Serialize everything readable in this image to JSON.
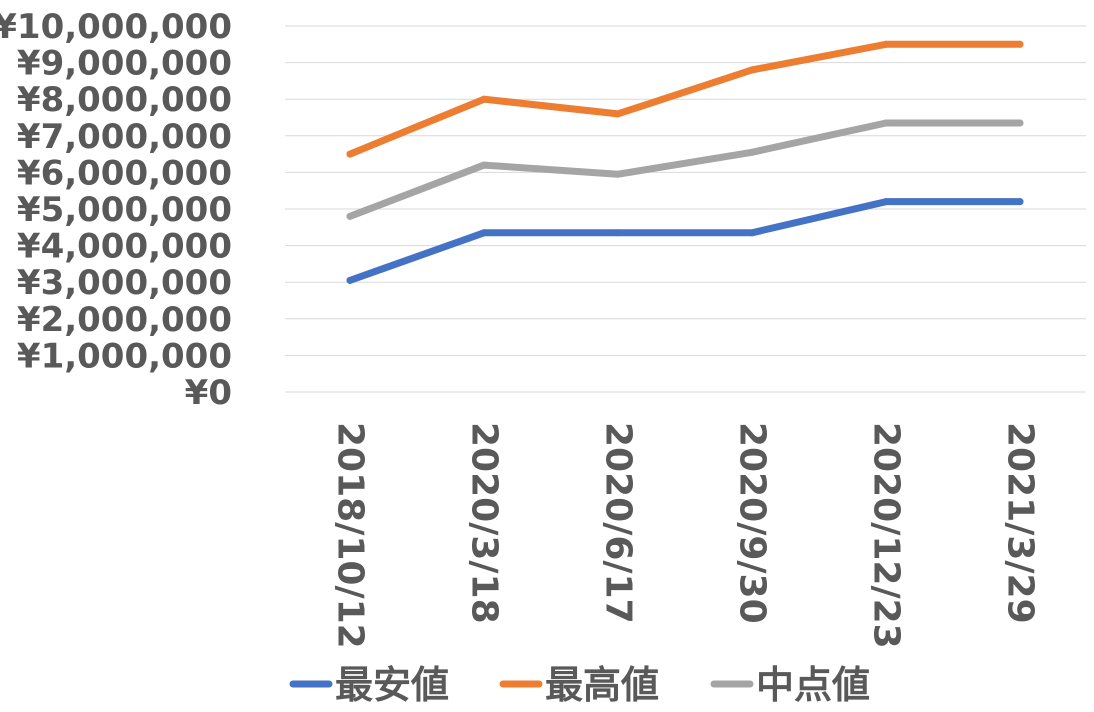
{
  "chart_data": {
    "type": "line",
    "title": "",
    "xlabel": "",
    "ylabel": "",
    "categories": [
      "2018/10/12",
      "2020/3/18",
      "2020/6/17",
      "2020/9/30",
      "2020/12/23",
      "2021/3/29"
    ],
    "ylim": [
      0,
      10000000
    ],
    "yticks": [
      0,
      1000000,
      2000000,
      3000000,
      4000000,
      5000000,
      6000000,
      7000000,
      8000000,
      9000000,
      10000000
    ],
    "ytick_labels": [
      "¥0",
      "¥1,000,000",
      "¥2,000,000",
      "¥3,000,000",
      "¥4,000,000",
      "¥5,000,000",
      "¥6,000,000",
      "¥7,000,000",
      "¥8,000,000",
      "¥9,000,000",
      "¥10,000,000"
    ],
    "grid": true,
    "legend_position": "bottom",
    "series": [
      {
        "name": "最安値",
        "color": "#4472c4",
        "values": [
          3050000,
          4350000,
          4350000,
          4350000,
          5200000,
          5200000
        ]
      },
      {
        "name": "最高値",
        "color": "#ed7d31",
        "values": [
          6500000,
          8000000,
          7600000,
          8800000,
          9500000,
          9500000
        ]
      },
      {
        "name": "中点値",
        "color": "#a5a5a5",
        "values": [
          4800000,
          6200000,
          5950000,
          6550000,
          7350000,
          7350000
        ]
      }
    ]
  }
}
